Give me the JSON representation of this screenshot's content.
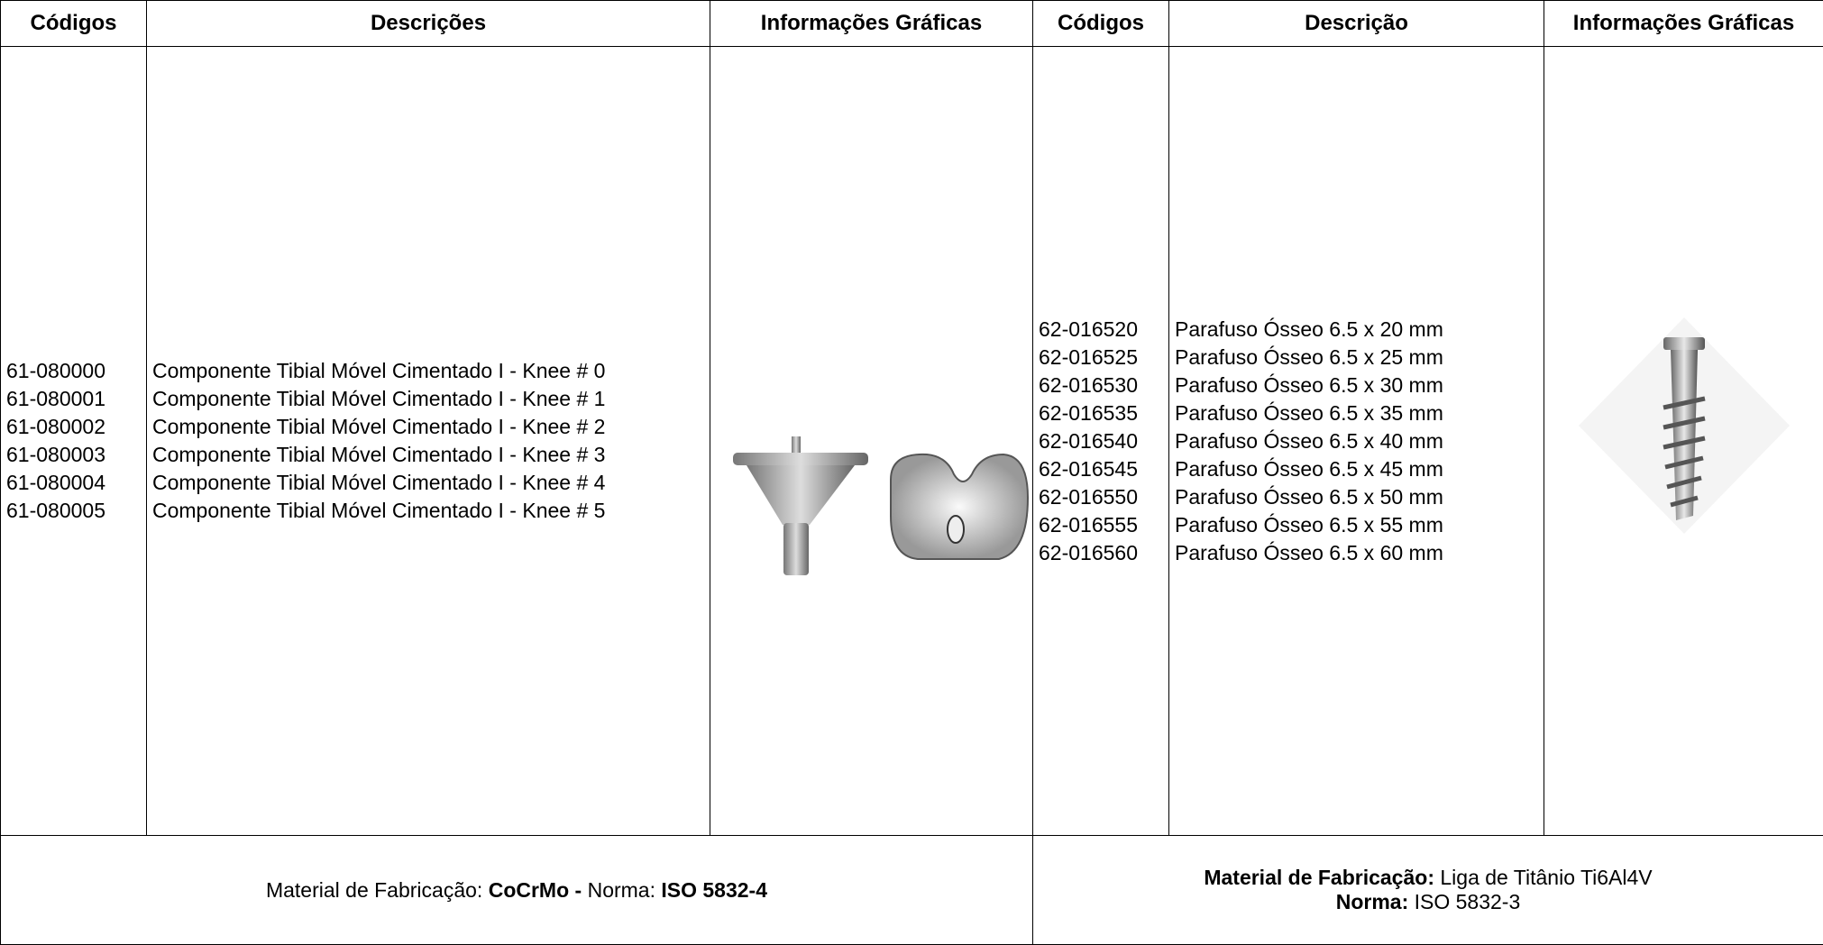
{
  "header": {
    "columns": [
      "Códigos",
      "Descrições",
      "Informações Gráficas",
      "Códigos",
      "Descrição",
      "Informações Gráficas"
    ]
  },
  "left": {
    "codes": [
      "61-080000",
      "61-080001",
      "61-080002",
      "61-080003",
      "61-080004",
      "61-080005"
    ],
    "descriptions": [
      "Componente Tibial Móvel Cimentado I - Knee # 0",
      "Componente Tibial Móvel Cimentado I - Knee # 1",
      "Componente Tibial Móvel Cimentado I - Knee # 2",
      "Componente Tibial Móvel Cimentado I - Knee # 3",
      "Componente Tibial Móvel Cimentado I - Knee # 4",
      "Componente Tibial Móvel Cimentado I - Knee # 5"
    ]
  },
  "right": {
    "codes": [
      "62-016520",
      "62-016525",
      "62-016530",
      "62-016535",
      "62-016540",
      "62-016545",
      "62-016550",
      "62-016555",
      "62-016560"
    ],
    "descriptions": [
      "Parafuso Ósseo 6.5 x 20 mm",
      "Parafuso Ósseo 6.5 x 25 mm",
      "Parafuso Ósseo 6.5 x 30 mm",
      "Parafuso Ósseo 6.5 x 35 mm",
      "Parafuso Ósseo 6.5 x 40 mm",
      "Parafuso Ósseo 6.5 x 45 mm",
      "Parafuso Ósseo 6.5 x 50 mm",
      "Parafuso Ósseo 6.5 x 55 mm",
      "Parafuso Ósseo 6.5 x 60 mm"
    ]
  },
  "footer": {
    "left": [
      {
        "text": "Material de Fabricação: ",
        "bold": false
      },
      {
        "text": "CoCrMo -",
        "bold": true
      },
      {
        "text": " Norma: ",
        "bold": false
      },
      {
        "text": "ISO 5832-4",
        "bold": true
      }
    ],
    "right": [
      [
        {
          "text": "Material de Fabricação:",
          "bold": true
        },
        {
          "text": " Liga de Titânio Ti6Al4V",
          "bold": false
        }
      ],
      [
        {
          "text": "Norma:",
          "bold": true
        },
        {
          "text": " ISO 5832-3",
          "bold": false
        }
      ]
    ]
  }
}
